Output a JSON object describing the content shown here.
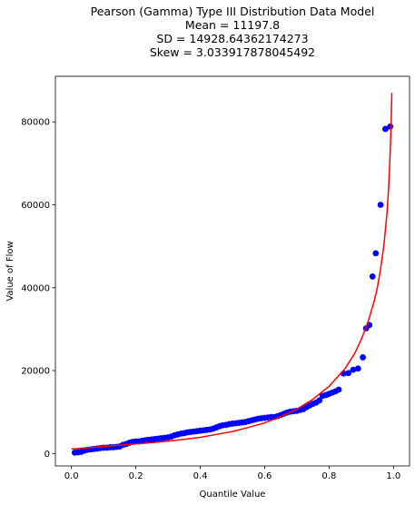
{
  "chart_data": {
    "type": "scatter",
    "title_lines": [
      "Pearson (Gamma) Type III Distribution Data Model",
      "Mean = 11197.8",
      "SD = 14928.64362174273",
      "Skew = 3.033917878045492"
    ],
    "xlabel": "Quantile Value",
    "ylabel": "Value of Flow",
    "xlim": [
      -0.05,
      1.05
    ],
    "ylim": [
      -3000,
      91000
    ],
    "x_ticks": [
      0.0,
      0.2,
      0.4,
      0.6,
      0.8,
      1.0
    ],
    "x_tick_labels": [
      "0.0",
      "0.2",
      "0.4",
      "0.6",
      "0.8",
      "1.0"
    ],
    "y_ticks": [
      0,
      20000,
      40000,
      60000,
      80000
    ],
    "y_tick_labels": [
      "0",
      "20000",
      "40000",
      "60000",
      "80000"
    ],
    "grid": false,
    "series": [
      {
        "kind": "points",
        "color": "#0000ff",
        "points": [
          [
            0.01,
            200
          ],
          [
            0.02,
            300
          ],
          [
            0.03,
            400
          ],
          [
            0.04,
            700
          ],
          [
            0.05,
            900
          ],
          [
            0.06,
            1000
          ],
          [
            0.07,
            1100
          ],
          [
            0.08,
            1200
          ],
          [
            0.09,
            1300
          ],
          [
            0.1,
            1400
          ],
          [
            0.11,
            1400
          ],
          [
            0.12,
            1500
          ],
          [
            0.13,
            1500
          ],
          [
            0.14,
            1600
          ],
          [
            0.15,
            1700
          ],
          [
            0.16,
            2100
          ],
          [
            0.17,
            2300
          ],
          [
            0.18,
            2600
          ],
          [
            0.19,
            2800
          ],
          [
            0.2,
            2900
          ],
          [
            0.21,
            2900
          ],
          [
            0.22,
            3100
          ],
          [
            0.23,
            3200
          ],
          [
            0.24,
            3300
          ],
          [
            0.25,
            3400
          ],
          [
            0.26,
            3500
          ],
          [
            0.27,
            3600
          ],
          [
            0.28,
            3700
          ],
          [
            0.29,
            3800
          ],
          [
            0.3,
            3900
          ],
          [
            0.31,
            4100
          ],
          [
            0.32,
            4400
          ],
          [
            0.33,
            4600
          ],
          [
            0.34,
            4800
          ],
          [
            0.35,
            4900
          ],
          [
            0.36,
            5100
          ],
          [
            0.37,
            5200
          ],
          [
            0.38,
            5300
          ],
          [
            0.39,
            5400
          ],
          [
            0.4,
            5500
          ],
          [
            0.41,
            5600
          ],
          [
            0.42,
            5700
          ],
          [
            0.43,
            5800
          ],
          [
            0.44,
            6000
          ],
          [
            0.45,
            6300
          ],
          [
            0.46,
            6600
          ],
          [
            0.47,
            6800
          ],
          [
            0.48,
            6900
          ],
          [
            0.49,
            7100
          ],
          [
            0.5,
            7200
          ],
          [
            0.51,
            7300
          ],
          [
            0.52,
            7400
          ],
          [
            0.53,
            7500
          ],
          [
            0.54,
            7600
          ],
          [
            0.55,
            7800
          ],
          [
            0.56,
            8000
          ],
          [
            0.57,
            8200
          ],
          [
            0.58,
            8400
          ],
          [
            0.59,
            8500
          ],
          [
            0.6,
            8600
          ],
          [
            0.61,
            8700
          ],
          [
            0.62,
            8800
          ],
          [
            0.63,
            8800
          ],
          [
            0.64,
            9000
          ],
          [
            0.65,
            9300
          ],
          [
            0.66,
            9600
          ],
          [
            0.67,
            9900
          ],
          [
            0.68,
            10100
          ],
          [
            0.69,
            10200
          ],
          [
            0.7,
            10300
          ],
          [
            0.71,
            10500
          ],
          [
            0.72,
            10700
          ],
          [
            0.73,
            11200
          ],
          [
            0.74,
            11600
          ],
          [
            0.75,
            12000
          ],
          [
            0.76,
            12300
          ],
          [
            0.77,
            12800
          ],
          [
            0.78,
            13900
          ],
          [
            0.79,
            14100
          ],
          [
            0.8,
            14400
          ],
          [
            0.81,
            14700
          ],
          [
            0.82,
            15000
          ],
          [
            0.83,
            15400
          ],
          [
            0.845,
            19300
          ],
          [
            0.86,
            19400
          ],
          [
            0.875,
            20200
          ],
          [
            0.89,
            20500
          ],
          [
            0.905,
            23200
          ],
          [
            0.915,
            30200
          ],
          [
            0.925,
            31000
          ],
          [
            0.935,
            42700
          ],
          [
            0.945,
            48300
          ],
          [
            0.96,
            60000
          ],
          [
            0.975,
            78300
          ],
          [
            0.99,
            78900
          ]
        ]
      },
      {
        "kind": "curve",
        "color": "#ff0000",
        "points": [
          [
            0.0,
            1100
          ],
          [
            0.02,
            1200
          ],
          [
            0.05,
            1400
          ],
          [
            0.1,
            1700
          ],
          [
            0.15,
            2000
          ],
          [
            0.2,
            2300
          ],
          [
            0.25,
            2600
          ],
          [
            0.3,
            3000
          ],
          [
            0.35,
            3400
          ],
          [
            0.4,
            3900
          ],
          [
            0.45,
            4600
          ],
          [
            0.5,
            5300
          ],
          [
            0.55,
            6300
          ],
          [
            0.6,
            7400
          ],
          [
            0.65,
            8900
          ],
          [
            0.7,
            10700
          ],
          [
            0.75,
            13100
          ],
          [
            0.8,
            16200
          ],
          [
            0.85,
            20500
          ],
          [
            0.88,
            24200
          ],
          [
            0.9,
            27500
          ],
          [
            0.92,
            31500
          ],
          [
            0.94,
            36700
          ],
          [
            0.95,
            40000
          ],
          [
            0.96,
            44500
          ],
          [
            0.97,
            50000
          ],
          [
            0.98,
            58000
          ],
          [
            0.985,
            64000
          ],
          [
            0.99,
            73000
          ],
          [
            0.993,
            80000
          ],
          [
            0.995,
            87000
          ]
        ]
      }
    ]
  }
}
